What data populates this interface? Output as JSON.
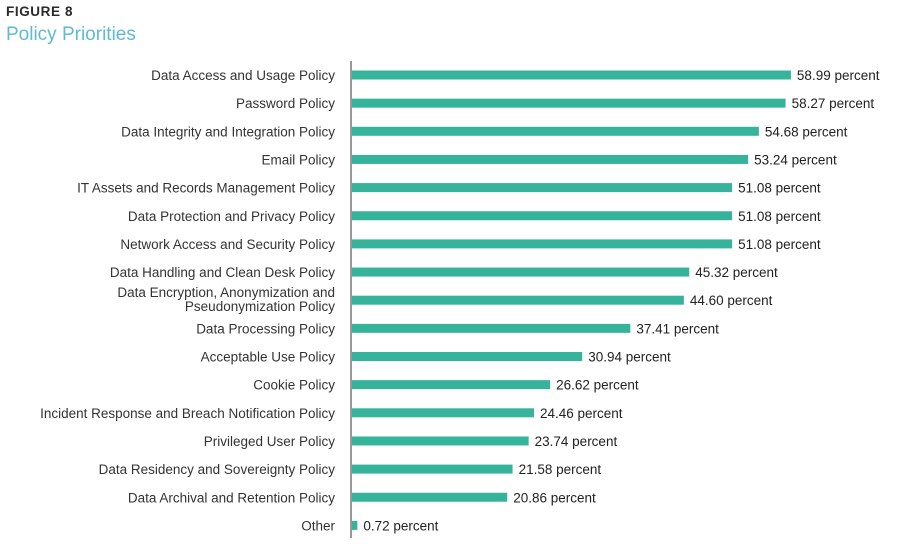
{
  "figure": {
    "label": "FIGURE 8",
    "title": "Policy Priorities"
  },
  "colors": {
    "bar": "#36b39b",
    "axis": "#333333",
    "title": "#5fb9d7"
  },
  "chart_data": {
    "type": "bar",
    "orientation": "horizontal",
    "title": "Policy Priorities",
    "xlabel": "",
    "ylabel": "",
    "value_suffix": "percent",
    "grid": false,
    "xlim": [
      0,
      60
    ],
    "categories": [
      "Data Access and Usage Policy",
      "Password Policy",
      "Data Integrity and Integration Policy",
      "Email Policy",
      "IT Assets and Records Management Policy",
      "Data Protection and Privacy Policy",
      "Network Access and Security Policy",
      "Data Handling and Clean Desk Policy",
      "Data Encryption, Anonymization and Pseudonymization Policy",
      "Data Processing Policy",
      "Acceptable Use Policy",
      "Cookie Policy",
      "Incident Response and Breach Notification Policy",
      "Privileged User Policy",
      "Data Residency and Sovereignty Policy",
      "Data Archival and Retention Policy",
      "Other"
    ],
    "values": [
      58.99,
      58.27,
      54.68,
      53.24,
      51.08,
      51.08,
      51.08,
      45.32,
      44.6,
      37.41,
      30.94,
      26.62,
      24.46,
      23.74,
      21.58,
      20.86,
      0.72
    ],
    "data_labels": [
      "58.99 percent",
      "58.27 percent",
      "54.68 percent",
      "53.24 percent",
      "51.08 percent",
      "51.08 percent",
      "51.08 percent",
      "45.32 percent",
      "44.60 percent",
      "37.41 percent",
      "30.94 percent",
      "26.62 percent",
      "24.46 percent",
      "23.74 percent",
      "21.58 percent",
      "20.86 percent",
      "0.72 percent"
    ]
  }
}
